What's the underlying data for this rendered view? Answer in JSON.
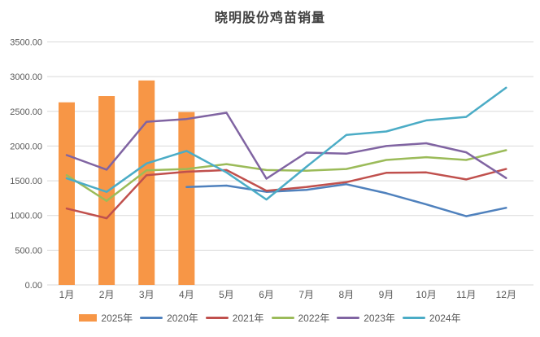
{
  "chart_data": {
    "type": "combo",
    "title": "晓明股份鸡苗销量",
    "categories": [
      "1月",
      "2月",
      "3月",
      "4月",
      "5月",
      "6月",
      "7月",
      "8月",
      "9月",
      "10月",
      "11月",
      "12月"
    ],
    "series": [
      {
        "name": "2025年",
        "kind": "bar",
        "color": "#F79646",
        "values": [
          2630,
          2720,
          2945,
          2490,
          null,
          null,
          null,
          null,
          null,
          null,
          null,
          null
        ]
      },
      {
        "name": "2020年",
        "kind": "line",
        "color": "#4F81BD",
        "values": [
          null,
          null,
          null,
          1410,
          1430,
          1340,
          1370,
          1450,
          1320,
          1160,
          990,
          1110
        ]
      },
      {
        "name": "2021年",
        "kind": "line",
        "color": "#C0504D",
        "values": [
          1100,
          960,
          1580,
          1630,
          1655,
          1355,
          1410,
          1480,
          1615,
          1620,
          1520,
          1670
        ]
      },
      {
        "name": "2022年",
        "kind": "line",
        "color": "#9BBB59",
        "values": [
          1580,
          1210,
          1650,
          1670,
          1740,
          1655,
          1645,
          1670,
          1800,
          1840,
          1800,
          1940
        ]
      },
      {
        "name": "2023年",
        "kind": "line",
        "color": "#8064A2",
        "values": [
          1870,
          1660,
          2350,
          2390,
          2480,
          1530,
          1905,
          1890,
          2000,
          2040,
          1910,
          1540
        ]
      },
      {
        "name": "2024年",
        "kind": "line",
        "color": "#4BACC6",
        "values": [
          1535,
          1340,
          1750,
          1930,
          1620,
          1230,
          1700,
          2160,
          2210,
          2370,
          2420,
          2840
        ]
      }
    ],
    "ylim": [
      0,
      3500
    ],
    "y_tick_step": 500,
    "y_tick_labels": [
      "0.00",
      "500.00",
      "1000.00",
      "1500.00",
      "2000.00",
      "2500.00",
      "3000.00",
      "3500.00"
    ],
    "grid": true,
    "legend_position": "bottom",
    "grid_color": "#D9D9D9",
    "tick_color": "#595959",
    "title_color": "#404040"
  }
}
